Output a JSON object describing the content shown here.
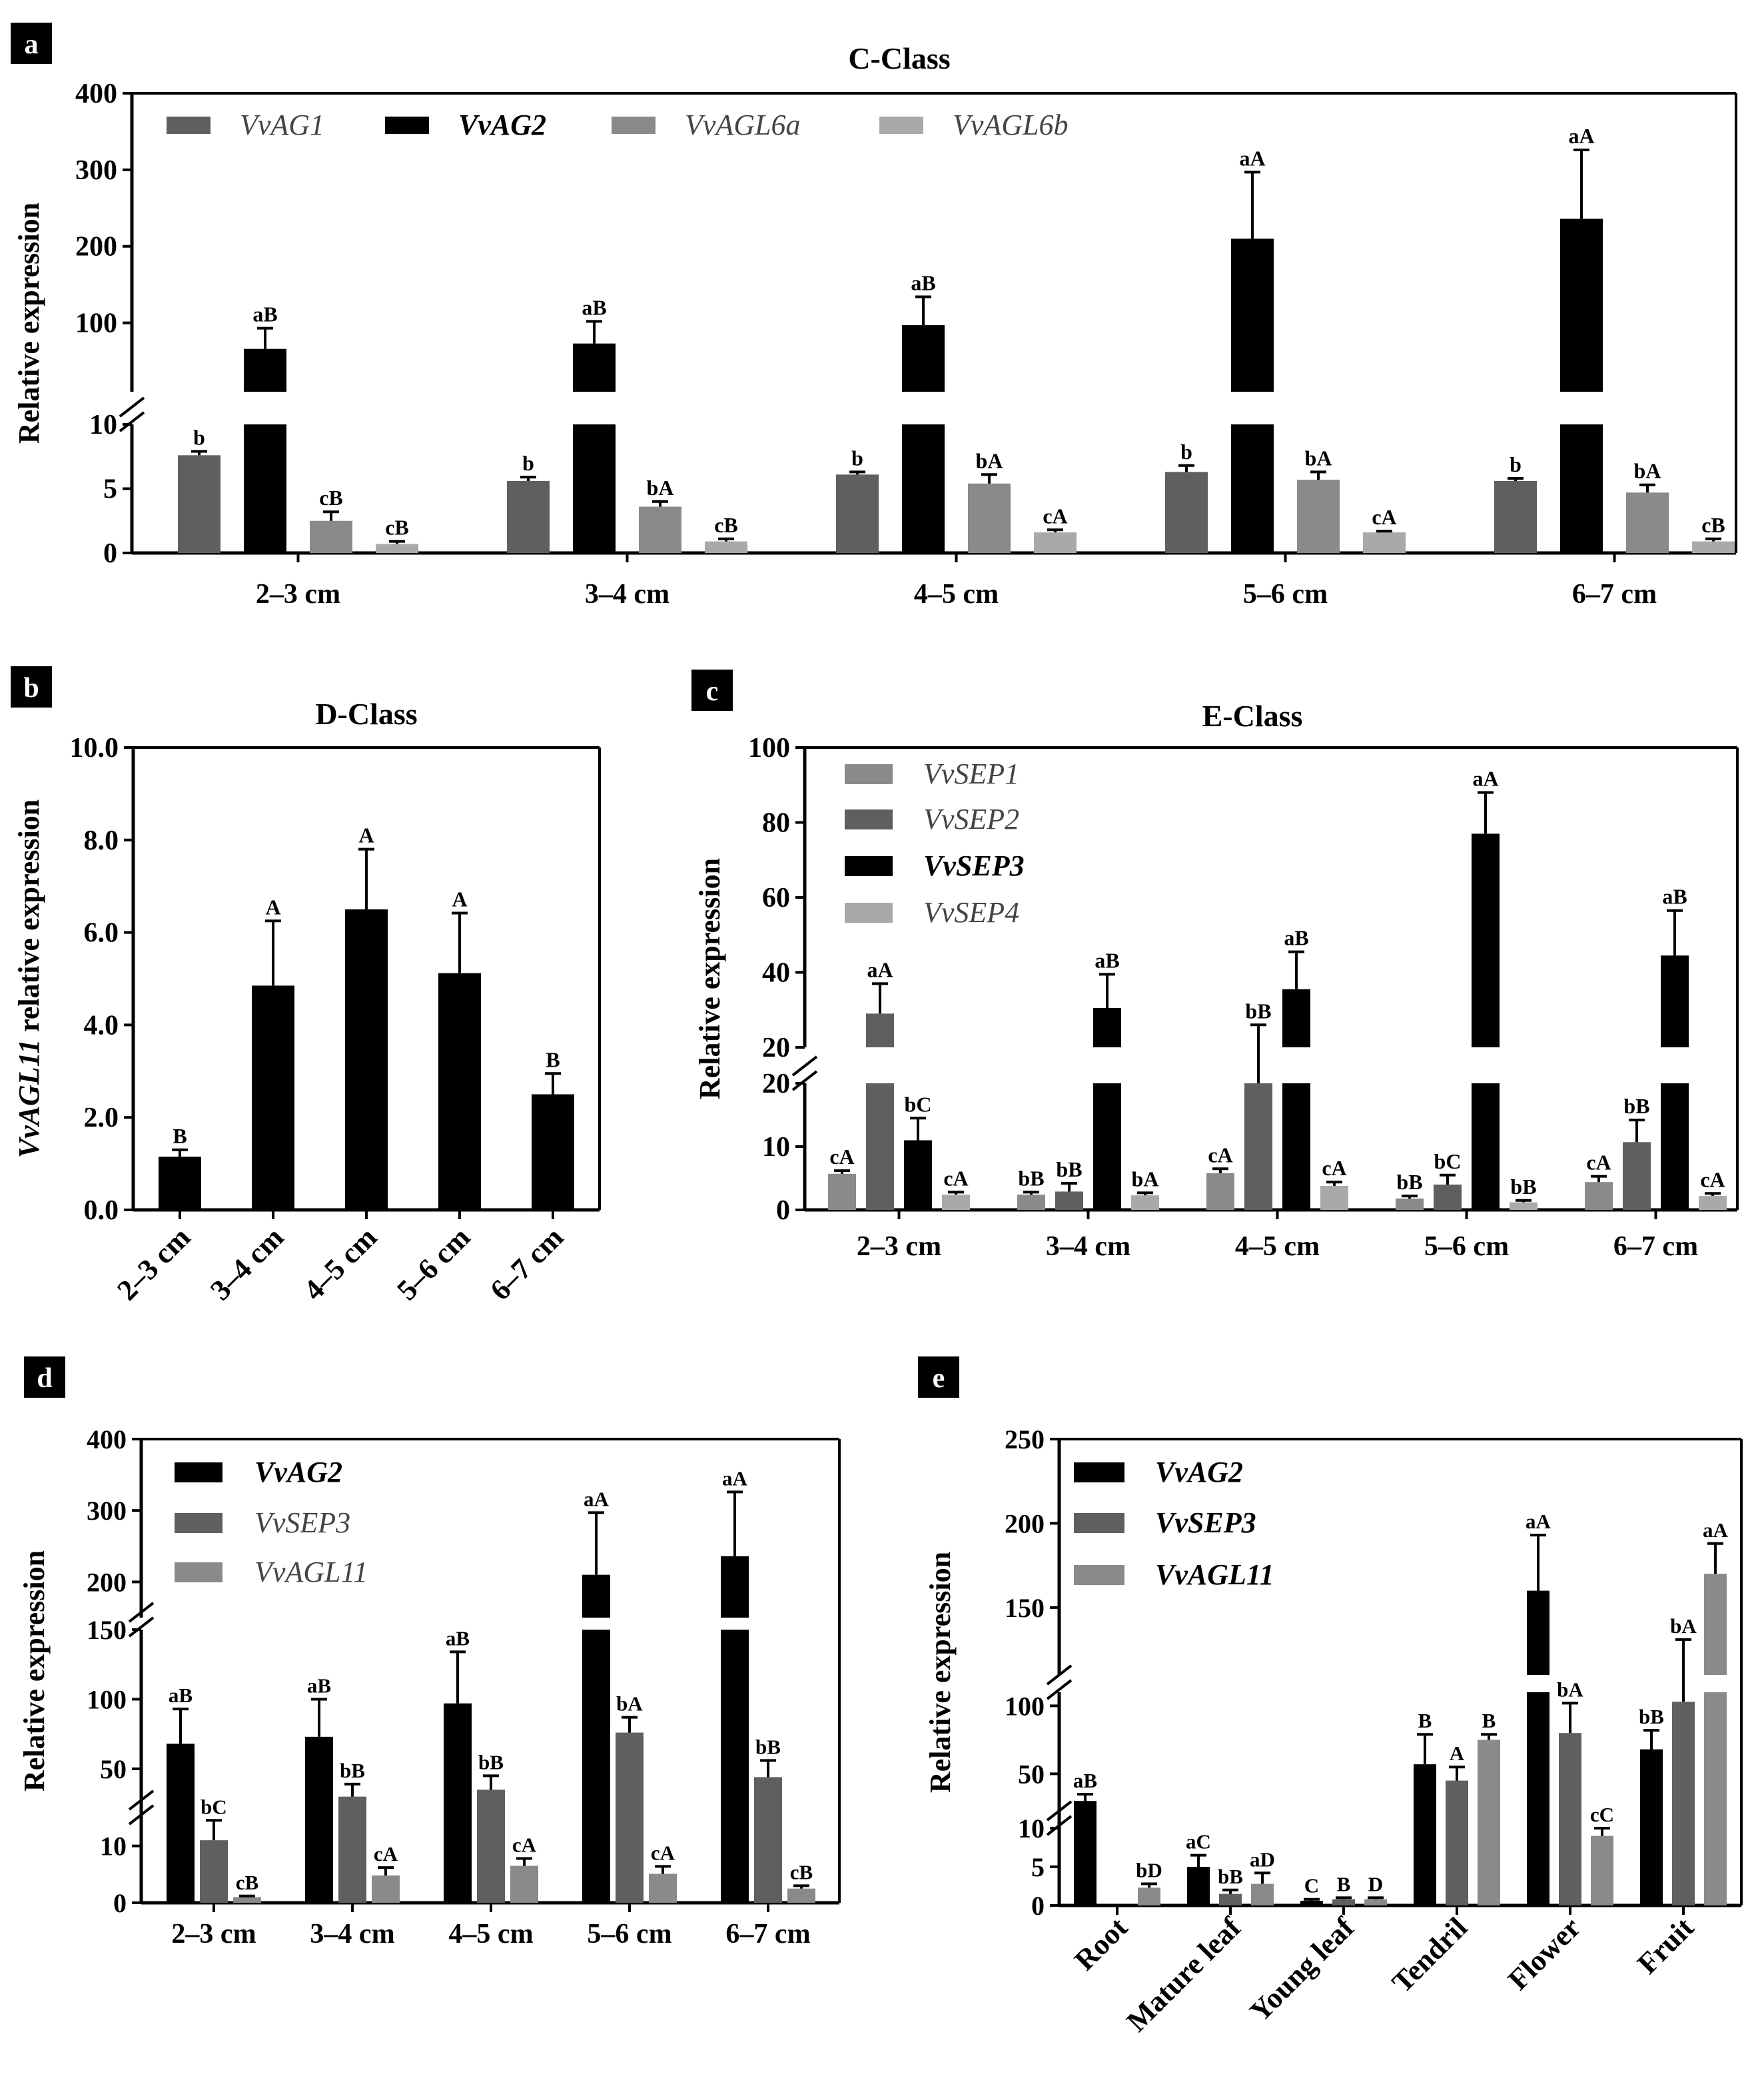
{
  "colors": {
    "black": "#000000",
    "dark": "#5f5f5f",
    "mid": "#8a8a8a",
    "light": "#a9a9a9"
  },
  "panels": [
    {
      "id": "a",
      "letter": "a",
      "title": "C-Class",
      "type": "bar",
      "ylabel": "Relative expression",
      "categories": [
        "2–3 cm",
        "3–4 cm",
        "4–5 cm",
        "5–6 cm",
        "6–7 cm"
      ],
      "segments": [
        {
          "lo": 0,
          "hi": 10,
          "ticks": [
            0,
            5,
            10
          ]
        },
        {
          "lo": 10,
          "hi": 400,
          "ticks": [
            100,
            200,
            300,
            400
          ]
        }
      ],
      "series": [
        {
          "name": "VvAG1",
          "color": "dark",
          "bold": false,
          "values": [
            7.6,
            5.6,
            6.1,
            6.3,
            5.6
          ],
          "errors": [
            0.3,
            0.3,
            0.2,
            0.5,
            0.2
          ],
          "labels": [
            "b",
            "b",
            "b",
            "b",
            "b"
          ]
        },
        {
          "name": "VvAG2",
          "color": "black",
          "bold": true,
          "values": [
            66,
            73,
            97,
            210,
            236
          ],
          "errors": [
            27,
            29,
            37,
            87,
            90
          ],
          "labels": [
            "aB",
            "aB",
            "aB",
            "aA",
            "aA"
          ]
        },
        {
          "name": "VvAGL6a",
          "color": "mid",
          "bold": false,
          "values": [
            2.5,
            3.6,
            5.4,
            5.7,
            4.7
          ],
          "errors": [
            0.7,
            0.4,
            0.7,
            0.6,
            0.6
          ],
          "labels": [
            "cB",
            "bA",
            "bA",
            "bA",
            "bA"
          ]
        },
        {
          "name": "VvAGL6b",
          "color": "light",
          "bold": false,
          "values": [
            0.7,
            0.9,
            1.6,
            1.6,
            0.9
          ],
          "errors": [
            0.2,
            0.2,
            0.2,
            0.1,
            0.2
          ],
          "labels": [
            "cB",
            "cB",
            "cA",
            "cA",
            "cB"
          ]
        }
      ]
    },
    {
      "id": "b",
      "letter": "b",
      "title": "D-Class",
      "type": "bar",
      "ylabel": "VvAGL11 relative expression",
      "ylabel_italic": "VvAGL11",
      "ylabel_rest": " relative expression",
      "categories": [
        "2–3 cm",
        "3–4 cm",
        "4–5 cm",
        "5–6 cm",
        "6–7 cm"
      ],
      "tick_labels": [
        "0.0",
        "2.0",
        "4.0",
        "6.0",
        "8.0",
        "10.0"
      ],
      "segments": [
        {
          "lo": 0,
          "hi": 10,
          "ticks": [
            0,
            2,
            4,
            6,
            8,
            10
          ]
        }
      ],
      "series": [
        {
          "name": "VvAGL11",
          "color": "black",
          "bold": false,
          "values": [
            1.15,
            4.85,
            6.5,
            5.12,
            2.5
          ],
          "errors": [
            0.15,
            1.4,
            1.3,
            1.3,
            0.45
          ],
          "labels": [
            "B",
            "A",
            "A",
            "A",
            "B"
          ]
        }
      ]
    },
    {
      "id": "c",
      "letter": "c",
      "title": "E-Class",
      "type": "bar",
      "ylabel": "Relative expression",
      "categories": [
        "2–3 cm",
        "3–4 cm",
        "4–5 cm",
        "5–6 cm",
        "6–7 cm"
      ],
      "segments": [
        {
          "lo": 0,
          "hi": 20,
          "ticks": [
            0,
            10,
            20
          ]
        },
        {
          "lo": 20,
          "hi": 100,
          "ticks": [
            20,
            40,
            60,
            80,
            100
          ]
        }
      ],
      "series": [
        {
          "name": "VvSEP1",
          "color": "mid",
          "bold": false,
          "values": [
            5.7,
            2.4,
            5.8,
            1.8,
            4.4
          ],
          "errors": [
            0.5,
            0.4,
            0.7,
            0.4,
            0.9
          ],
          "labels": [
            "cA",
            "bB",
            "cA",
            "bB",
            "cA"
          ]
        },
        {
          "name": "VvSEP2",
          "color": "dark",
          "bold": false,
          "values": [
            29,
            2.9,
            20,
            4,
            10.7
          ],
          "errors": [
            8,
            1.3,
            6,
            1.5,
            3.5
          ],
          "labels": [
            "aA",
            "bB",
            "bB",
            "bC",
            "bB"
          ]
        },
        {
          "name": "VvSEP3",
          "color": "black",
          "bold": true,
          "values": [
            11,
            30.5,
            35.5,
            77,
            44.5
          ],
          "errors": [
            3.5,
            9,
            10,
            11,
            12
          ],
          "labels": [
            "bC",
            "aB",
            "aB",
            "aA",
            "aB"
          ]
        },
        {
          "name": "VvSEP4",
          "color": "light",
          "bold": false,
          "values": [
            2.4,
            2.3,
            3.8,
            1.2,
            2.2
          ],
          "errors": [
            0.4,
            0.4,
            0.6,
            0.3,
            0.4
          ],
          "labels": [
            "cA",
            "bA",
            "cA",
            "bB",
            "cA"
          ]
        }
      ]
    },
    {
      "id": "d",
      "letter": "d",
      "title": "",
      "type": "bar",
      "ylabel": "Relative expression",
      "categories": [
        "2–3 cm",
        "3–4 cm",
        "4–5 cm",
        "5–6 cm",
        "6–7 cm"
      ],
      "segments": [
        {
          "lo": 0,
          "hi": 15,
          "ticks": [
            0,
            10
          ]
        },
        {
          "lo": 15,
          "hi": 150,
          "ticks": [
            50,
            100,
            150
          ]
        },
        {
          "lo": 150,
          "hi": 400,
          "ticks": [
            200,
            300,
            400
          ]
        }
      ],
      "series": [
        {
          "name": "VvAG2",
          "color": "black",
          "bold": true,
          "values": [
            68,
            73,
            97,
            210,
            236
          ],
          "errors": [
            25,
            27,
            37,
            87,
            90
          ],
          "labels": [
            "aB",
            "aB",
            "aB",
            "aA",
            "aA"
          ]
        },
        {
          "name": "VvSEP3",
          "color": "dark",
          "bold": false,
          "values": [
            11,
            30,
            35,
            76,
            44
          ],
          "errors": [
            3.5,
            9,
            10,
            11,
            12
          ],
          "labels": [
            "bC",
            "bB",
            "bB",
            "bA",
            "bB"
          ]
        },
        {
          "name": "VvAGL11",
          "color": "mid",
          "bold": false,
          "values": [
            1,
            4.8,
            6.5,
            5.1,
            2.5
          ],
          "errors": [
            0.2,
            1.4,
            1.3,
            1.3,
            0.5
          ],
          "labels": [
            "cB",
            "cA",
            "cA",
            "cA",
            "cB"
          ]
        }
      ]
    },
    {
      "id": "e",
      "letter": "e",
      "title": "",
      "type": "bar",
      "ylabel": "Relative expression",
      "categories": [
        "Root",
        "Mature leaf",
        "Young leaf",
        "Tendril",
        "Flower",
        "Fruit"
      ],
      "segments": [
        {
          "lo": 0,
          "hi": 10,
          "ticks": [
            0,
            5,
            10
          ]
        },
        {
          "lo": 10,
          "hi": 110,
          "ticks": [
            50,
            100
          ]
        },
        {
          "lo": 110,
          "hi": 250,
          "ticks": [
            150,
            200,
            250
          ]
        }
      ],
      "series": [
        {
          "name": "VvAG2",
          "color": "black",
          "bold": true,
          "values": [
            30,
            5,
            0.6,
            57,
            160,
            68
          ],
          "errors": [
            5,
            1.5,
            0.2,
            22,
            33,
            14
          ],
          "labels": [
            "aB",
            "aC",
            "C",
            "B",
            "aA",
            "bB"
          ]
        },
        {
          "name": "VvSEP3",
          "color": "dark",
          "bold": true,
          "values": [
            0,
            1.5,
            0.8,
            45,
            80,
            103
          ],
          "errors": [
            0,
            0.5,
            0.2,
            10,
            22,
            28
          ],
          "labels": [
            "",
            "bB",
            "B",
            "A",
            "bA",
            "bA"
          ]
        },
        {
          "name": "VvAGL11",
          "color": "mid",
          "bold": true,
          "values": [
            2.3,
            2.8,
            0.8,
            75,
            9,
            170
          ],
          "errors": [
            0.5,
            1.4,
            0.2,
            4,
            1,
            18
          ],
          "labels": [
            "bD",
            "aD",
            "D",
            "B",
            "cC",
            "aA"
          ]
        }
      ]
    }
  ]
}
